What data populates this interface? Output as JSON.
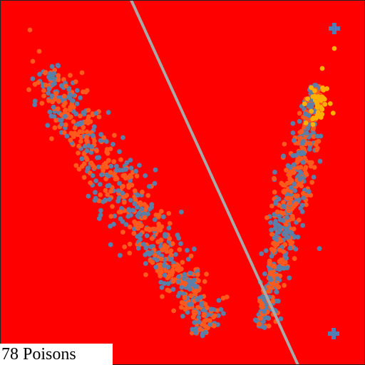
{
  "hud": {
    "poison_count_label": "78 Poisons"
  },
  "colors": {
    "background": "#ff0000",
    "divider": "#a9a9a9",
    "particle_blue": "#5a7fa8",
    "particle_orange": "#ff5a1e",
    "particle_gold": "#ffb000",
    "player_marker": "#4f7fb5"
  },
  "icons": {
    "player_marker": "plus-cross-icon"
  }
}
